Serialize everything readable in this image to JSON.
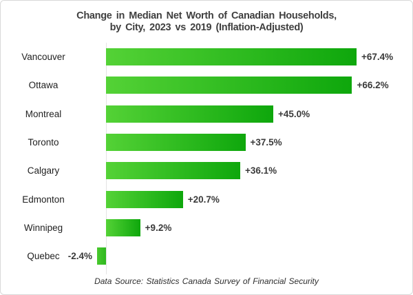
{
  "title": {
    "line1": "Change in Median Net Worth of Canadian Households,",
    "line2": "by City, 2023 vs 2019 (Inflation-Adjusted)"
  },
  "footer": {
    "text": "Data Source: Statistics Canada Survey of Financial Security"
  },
  "chart_data": {
    "type": "bar",
    "orientation": "horizontal",
    "title": "Change in Median Net Worth of Canadian Households, by City, 2023 vs 2019 (Inflation-Adjusted)",
    "categories": [
      "Vancouver",
      "Ottawa",
      "Montreal",
      "Toronto",
      "Calgary",
      "Edmonton",
      "Winnipeg",
      "Quebec"
    ],
    "values": [
      67.4,
      66.2,
      45.0,
      37.5,
      36.1,
      20.7,
      9.2,
      -2.4
    ],
    "value_labels": [
      "+67.4%",
      "+66.2%",
      "+45.0%",
      "+37.5%",
      "+36.1%",
      "+20.7%",
      "+9.2%",
      "-2.4%"
    ],
    "xlim": [
      -5,
      80
    ],
    "grid": false,
    "legend": false,
    "baseline_at_zero": true,
    "colors": {
      "bar_gradient_start": "#54d236",
      "bar_gradient_end": "#0ea70c",
      "axis_line": "#e4e4e4",
      "title_text": "#3f3f3f",
      "label_text": "#1f1f1f",
      "value_text": "#3a3a3a"
    }
  }
}
